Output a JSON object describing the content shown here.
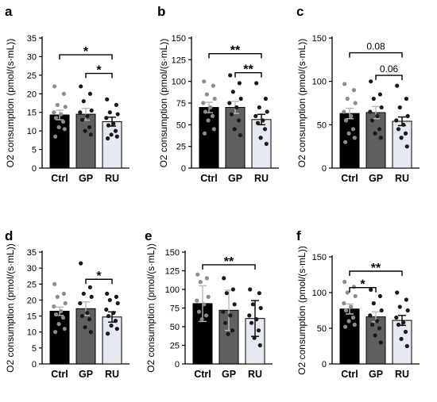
{
  "figure": {
    "colors": {
      "Ctrl": "#000000",
      "GP": "#5f5f5f",
      "RU": "#e6e8f2",
      "bar_edge": "#000000",
      "dot_dark": "#1a1a1a",
      "dot_light": "#8c8c8c"
    }
  },
  "chart_data": [
    {
      "panel": "a",
      "type": "bar",
      "ylabel": "O2 consumption (pmol/(s·mL))",
      "categories": [
        "Ctrl",
        "GP",
        "RU"
      ],
      "values": [
        14.3,
        14.5,
        12.5
      ],
      "error": [
        1.3,
        1.6,
        1.2
      ],
      "ylim": [
        0,
        35
      ],
      "yticks": [
        0,
        5,
        10,
        15,
        20,
        25,
        30,
        35
      ],
      "points": [
        [
          22,
          20,
          17,
          16.5,
          15,
          14.5,
          13.5,
          12.5,
          11,
          10.5,
          8.5
        ],
        [
          22,
          20,
          18,
          15.5,
          15,
          14,
          13,
          11,
          10,
          9
        ],
        [
          18.5,
          17,
          15,
          14.5,
          13.5,
          12,
          11.5,
          10,
          9,
          8.5,
          8
        ]
      ],
      "annotations": [
        {
          "from": 0,
          "to": 2,
          "label": "*",
          "y": 30.5
        },
        {
          "from": 1,
          "to": 2,
          "label": "*",
          "y": 25.5
        }
      ]
    },
    {
      "panel": "b",
      "type": "bar",
      "ylabel": "O2 consumption (pmol/(s·mL))",
      "categories": [
        "Ctrl",
        "GP",
        "RU"
      ],
      "values": [
        70,
        70,
        56
      ],
      "error": [
        6,
        7,
        6
      ],
      "ylim": [
        0,
        150
      ],
      "yticks": [
        0,
        25,
        50,
        75,
        100,
        125,
        150
      ],
      "points": [
        [
          100,
          95,
          85,
          80,
          75,
          70,
          65,
          60,
          55,
          45,
          40
        ],
        [
          107,
          98,
          88,
          80,
          75,
          70,
          62,
          55,
          45,
          38
        ],
        [
          98,
          80,
          70,
          65,
          60,
          55,
          52,
          45,
          35,
          28
        ]
      ],
      "annotations": [
        {
          "from": 0,
          "to": 2,
          "label": "**",
          "y": 132
        },
        {
          "from": 1,
          "to": 2,
          "label": "**",
          "y": 110
        }
      ]
    },
    {
      "panel": "c",
      "type": "bar",
      "ylabel": "O2 consumption (pmol/(s·mL))",
      "categories": [
        "Ctrl",
        "GP",
        "RU"
      ],
      "values": [
        63,
        64,
        54
      ],
      "error": [
        6,
        7,
        5
      ],
      "ylim": [
        0,
        150
      ],
      "yticks": [
        0,
        50,
        100,
        150
      ],
      "points": [
        [
          97,
          90,
          80,
          75,
          65,
          60,
          55,
          45,
          40,
          35,
          30
        ],
        [
          100,
          85,
          80,
          70,
          65,
          60,
          55,
          45,
          40,
          35
        ],
        [
          95,
          80,
          70,
          60,
          55,
          50,
          45,
          40,
          35,
          25
        ]
      ],
      "annotations": [
        {
          "from": 0,
          "to": 2,
          "label": "0.08",
          "y": 133
        },
        {
          "from": 1,
          "to": 2,
          "label": "0.06",
          "y": 107
        }
      ]
    },
    {
      "panel": "d",
      "type": "bar",
      "ylabel": "O2 consumption (pmol/(s·mL))",
      "categories": [
        "Ctrl",
        "GP",
        "RU"
      ],
      "values": [
        16.5,
        17.3,
        14.7
      ],
      "error": [
        1.3,
        2.1,
        1.6
      ],
      "ylim": [
        0,
        35
      ],
      "yticks": [
        0,
        5,
        10,
        15,
        20,
        25,
        30,
        35
      ],
      "points": [
        [
          25,
          22,
          21,
          19,
          18,
          16.5,
          15.5,
          14.5,
          12.5,
          11,
          10
        ],
        [
          31.5,
          24,
          22,
          21,
          19,
          16,
          15,
          14,
          11.5,
          10
        ],
        [
          22,
          21,
          20,
          19,
          17,
          16,
          15,
          13.5,
          12,
          11,
          9.5
        ]
      ],
      "annotations": [
        {
          "from": 1,
          "to": 2,
          "label": "*",
          "y": 26.5
        }
      ]
    },
    {
      "panel": "e",
      "type": "bar",
      "ylabel": "O2 consumption (pmol/(s·mL))",
      "categories": [
        "Ctrl",
        "GP",
        "RU"
      ],
      "values": [
        81,
        72,
        61
      ],
      "error": [
        24,
        27,
        24
      ],
      "ylim": [
        0,
        150
      ],
      "yticks": [
        0,
        25,
        50,
        75,
        100,
        125,
        150
      ],
      "points": [
        [
          120,
          115,
          110,
          90,
          85,
          80,
          70,
          65,
          60
        ],
        [
          115,
          100,
          95,
          80,
          70,
          65,
          55,
          45,
          40
        ],
        [
          100,
          95,
          80,
          75,
          65,
          60,
          55,
          45,
          35,
          25
        ]
      ],
      "annotations": [
        {
          "from": 0,
          "to": 2,
          "label": "**",
          "y": 133
        }
      ]
    },
    {
      "panel": "f",
      "type": "bar",
      "ylabel": "O2 consumption (pmol/(s·mL))",
      "categories": [
        "Ctrl",
        "GP",
        "RU"
      ],
      "values": [
        77,
        66,
        61
      ],
      "error": [
        7,
        7,
        7
      ],
      "ylim": [
        0,
        150
      ],
      "yticks": [
        0,
        50,
        100,
        150
      ],
      "points": [
        [
          115,
          108,
          100,
          95,
          85,
          80,
          75,
          65,
          60,
          55,
          52
        ],
        [
          104,
          95,
          85,
          75,
          68,
          60,
          55,
          50,
          40,
          30
        ],
        [
          100,
          90,
          80,
          75,
          65,
          58,
          55,
          45,
          35,
          25
        ]
      ],
      "annotations": [
        {
          "from": 0,
          "to": 2,
          "label": "**",
          "y": 130
        },
        {
          "from": 0,
          "to": 1,
          "label": "*",
          "y": 107
        }
      ]
    }
  ]
}
